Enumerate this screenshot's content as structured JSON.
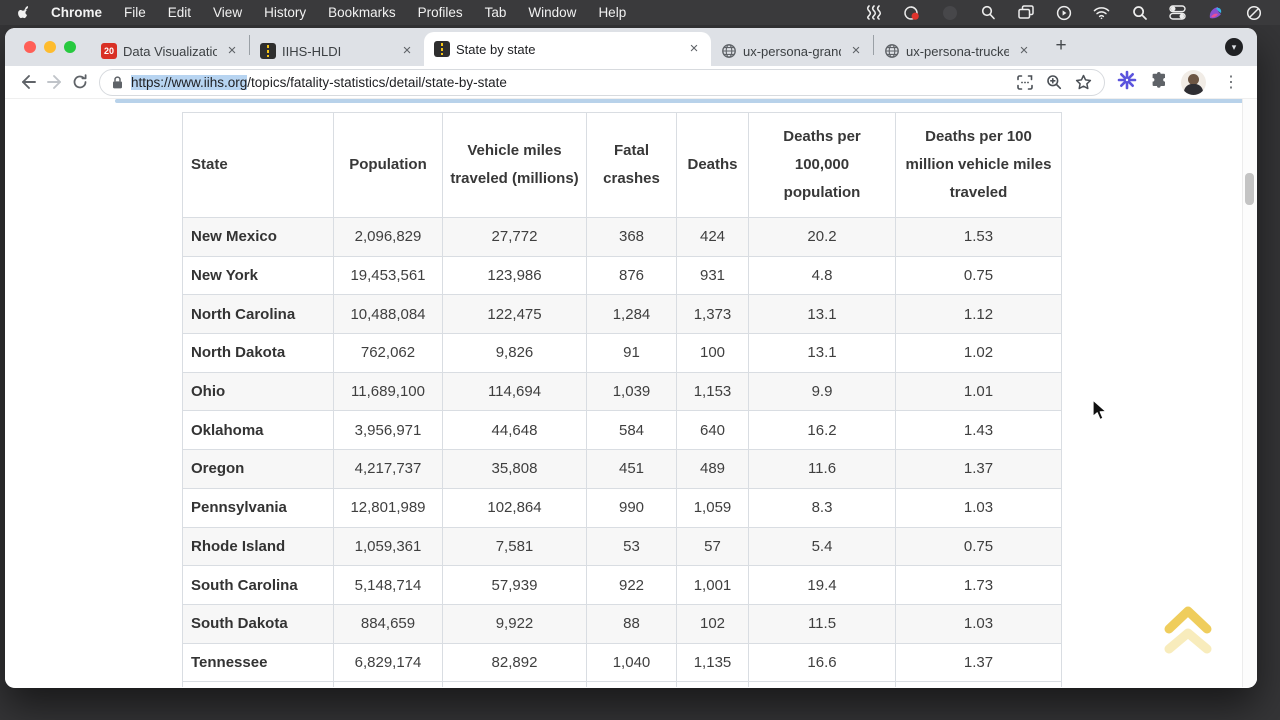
{
  "menu_bar": {
    "apple_menu": "apple-logo",
    "items": [
      "Chrome",
      "File",
      "Edit",
      "View",
      "History",
      "Bookmarks",
      "Profiles",
      "Tab",
      "Window",
      "Help"
    ],
    "status_icons": [
      "waves-icon",
      "screen-record-icon",
      "dark-app-icon",
      "loupe-zoom-icon",
      "windows-copy-icon",
      "play-circle-icon",
      "wifi-icon",
      "spotlight-search-icon",
      "control-center-icon",
      "colorful-app-icon",
      "do-not-disturb-icon"
    ]
  },
  "browser": {
    "tabs": [
      {
        "title": "Data Visualization Founda",
        "favicon": "calendar-20",
        "active": false
      },
      {
        "title": "IIHS-HLDI",
        "favicon": "road",
        "active": false
      },
      {
        "title": "State by state",
        "favicon": "road",
        "active": true
      },
      {
        "title": "ux-persona-grandma-gin",
        "favicon": "globe",
        "active": false
      },
      {
        "title": "ux-persona-trucker-ted",
        "favicon": "globe",
        "active": false
      }
    ],
    "url": {
      "selected": "https://www.iihs.org",
      "rest": "/topics/fatality-statistics/detail/state-by-state"
    },
    "icons": {
      "close_glyph": "×",
      "new_tab_glyph": "+",
      "tab_search_glyph": "▾",
      "kebab_glyph": "⋮"
    }
  },
  "page": {
    "table": {
      "headers": [
        "State",
        "Population",
        "Vehicle miles traveled (millions)",
        "Fatal crashes",
        "Deaths",
        "Deaths per 100,000 population",
        "Deaths per 100 million vehicle miles traveled"
      ],
      "rows": [
        [
          "New Mexico",
          "2,096,829",
          "27,772",
          "368",
          "424",
          "20.2",
          "1.53"
        ],
        [
          "New York",
          "19,453,561",
          "123,986",
          "876",
          "931",
          "4.8",
          "0.75"
        ],
        [
          "North Carolina",
          "10,488,084",
          "122,475",
          "1,284",
          "1,373",
          "13.1",
          "1.12"
        ],
        [
          "North Dakota",
          "762,062",
          "9,826",
          "91",
          "100",
          "13.1",
          "1.02"
        ],
        [
          "Ohio",
          "11,689,100",
          "114,694",
          "1,039",
          "1,153",
          "9.9",
          "1.01"
        ],
        [
          "Oklahoma",
          "3,956,971",
          "44,648",
          "584",
          "640",
          "16.2",
          "1.43"
        ],
        [
          "Oregon",
          "4,217,737",
          "35,808",
          "451",
          "489",
          "11.6",
          "1.37"
        ],
        [
          "Pennsylvania",
          "12,801,989",
          "102,864",
          "990",
          "1,059",
          "8.3",
          "1.03"
        ],
        [
          "Rhode Island",
          "1,059,361",
          "7,581",
          "53",
          "57",
          "5.4",
          "0.75"
        ],
        [
          "South Carolina",
          "5,148,714",
          "57,939",
          "922",
          "1,001",
          "19.4",
          "1.73"
        ],
        [
          "South Dakota",
          "884,659",
          "9,922",
          "88",
          "102",
          "11.5",
          "1.03"
        ],
        [
          "Tennessee",
          "6,829,174",
          "82,892",
          "1,040",
          "1,135",
          "16.6",
          "1.37"
        ]
      ]
    }
  },
  "colors": {
    "url_selection_blue": "#b7d4f1",
    "back_to_top_yellow": "#eec94e",
    "menu_bar_bg": "#3a3a3c",
    "tab_strip_bg": "#dee1e6",
    "row_stripe": "#f7f7f7",
    "table_border": "#d9dde2"
  }
}
